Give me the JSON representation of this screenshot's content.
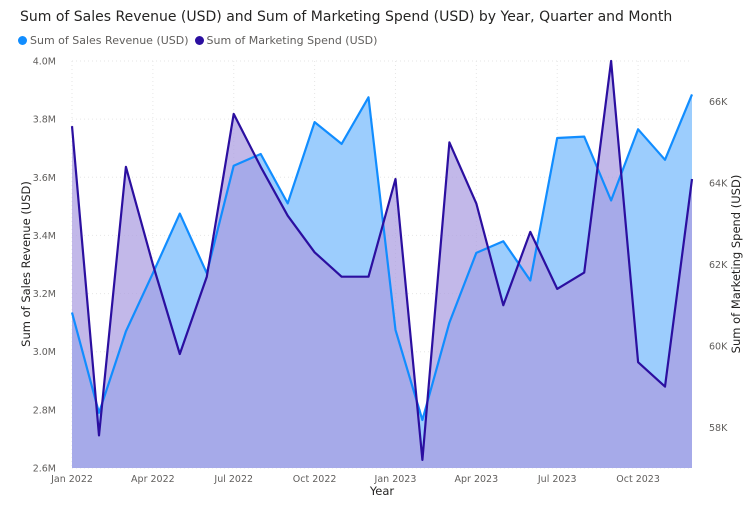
{
  "chart_data": {
    "type": "area",
    "title": "Sum of Sales Revenue (USD) and Sum of Marketing Spend (USD) by Year, Quarter and Month",
    "xlabel": "Year",
    "ylabel": "Sum of Sales Revenue (USD)",
    "y2label": "Sum of Marketing Spend (USD)",
    "categories": [
      "Jan 2022",
      "Feb 2022",
      "Mar 2022",
      "Apr 2022",
      "May 2022",
      "Jun 2022",
      "Jul 2022",
      "Aug 2022",
      "Sep 2022",
      "Oct 2022",
      "Nov 2022",
      "Dec 2022",
      "Jan 2023",
      "Feb 2023",
      "Mar 2023",
      "Apr 2023",
      "May 2023",
      "Jun 2023",
      "Jul 2023",
      "Aug 2023",
      "Sep 2023",
      "Oct 2023",
      "Nov 2023",
      "Dec 2023"
    ],
    "x_tick_labels": [
      "Jan 2022",
      "Apr 2022",
      "Jul 2022",
      "Oct 2022",
      "Jan 2023",
      "Apr 2023",
      "Jul 2023",
      "Oct 2023"
    ],
    "y_ticks": [
      "4.0M",
      "3.8M",
      "3.6M",
      "3.4M",
      "3.2M",
      "3.0M",
      "2.8M",
      "2.6M"
    ],
    "y2_ticks": [
      "66K",
      "64K",
      "62K",
      "60K",
      "58K"
    ],
    "ylim": [
      2600000,
      4000000
    ],
    "y2lim": [
      57000,
      67000
    ],
    "legend_position": "top-left",
    "grid": true,
    "series": [
      {
        "name": "Sum of Sales Revenue (USD)",
        "axis": "left",
        "color": "#118dff",
        "fill": "#9ccdfd",
        "values": [
          3135000,
          2790000,
          3070000,
          3270000,
          3475000,
          3270000,
          3640000,
          3680000,
          3510000,
          3790000,
          3715000,
          3875000,
          3075000,
          2765000,
          3100000,
          3340000,
          3380000,
          3245000,
          3735000,
          3740000,
          3520000,
          3765000,
          3660000,
          3885000
        ]
      },
      {
        "name": "Sum of Marketing Spend (USD)",
        "axis": "right",
        "color": "#2b0fa0",
        "fill": "#ab9de0",
        "values": [
          65400,
          57800,
          64400,
          62000,
          59800,
          61700,
          65700,
          64400,
          63200,
          62300,
          61700,
          61700,
          64100,
          57200,
          65000,
          63500,
          61000,
          62800,
          61400,
          61800,
          67000,
          59600,
          59000,
          64100
        ]
      }
    ]
  }
}
